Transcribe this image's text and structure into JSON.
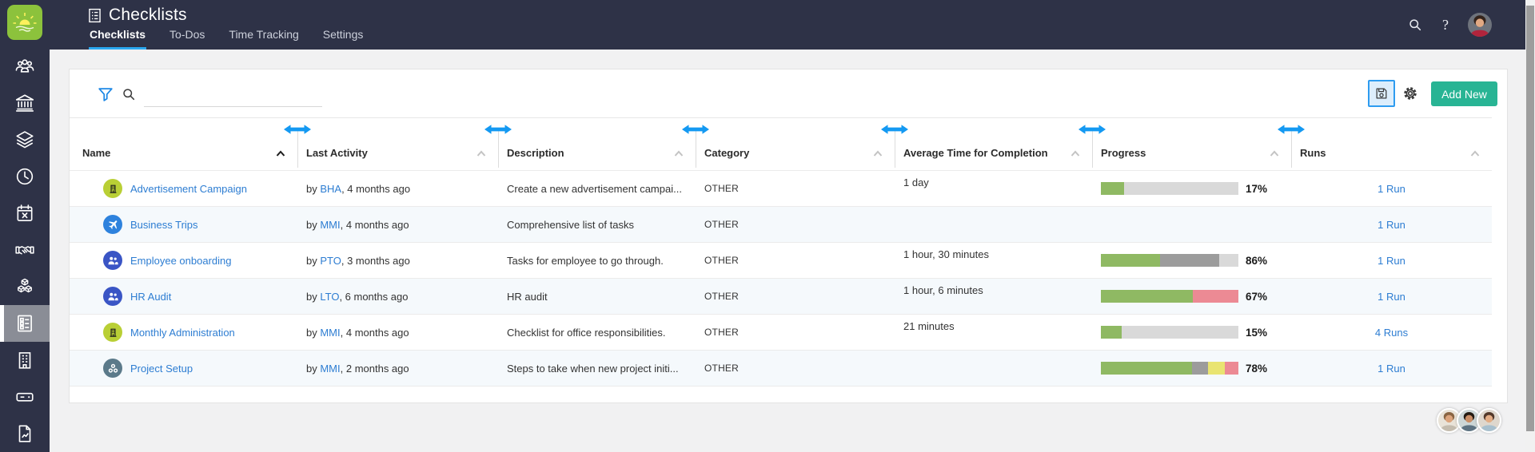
{
  "header": {
    "title": "Checklists",
    "tabs": [
      {
        "label": "Checklists",
        "active": true
      },
      {
        "label": "To-Dos",
        "active": false
      },
      {
        "label": "Time Tracking",
        "active": false
      },
      {
        "label": "Settings",
        "active": false
      }
    ]
  },
  "sidebar": {
    "items": [
      {
        "icon": "team",
        "selected": false
      },
      {
        "icon": "bank",
        "selected": false
      },
      {
        "icon": "layers",
        "selected": false
      },
      {
        "icon": "clock",
        "selected": false
      },
      {
        "icon": "calendar-x",
        "selected": false
      },
      {
        "icon": "handshake",
        "selected": false
      },
      {
        "icon": "cubes",
        "selected": false
      },
      {
        "icon": "checklist",
        "selected": true
      },
      {
        "icon": "building",
        "selected": false
      },
      {
        "icon": "server",
        "selected": false
      },
      {
        "icon": "report",
        "selected": false
      }
    ]
  },
  "toolbar": {
    "search_value": "",
    "add_new_label": "Add New"
  },
  "table": {
    "columns": [
      {
        "label": "Name",
        "sorted": true
      },
      {
        "label": "Last Activity",
        "sorted": false
      },
      {
        "label": "Description",
        "sorted": false
      },
      {
        "label": "Category",
        "sorted": false
      },
      {
        "label": "Average Time for Completion",
        "sorted": false
      },
      {
        "label": "Progress",
        "sorted": false
      },
      {
        "label": "Runs",
        "sorted": false
      }
    ],
    "rows": [
      {
        "name": "Advertisement Campaign",
        "icon": "building-sm",
        "icon_bg": "#b9cf35",
        "icon_fg": "#1d1d1d",
        "by_prefix": "by ",
        "by_user": "BHA",
        "by_suffix": ", 4 months ago",
        "description": "Create a new advertisement campai...",
        "category": "OTHER",
        "avg_time": {
          "text": "1 day",
          "bar_pct": 100
        },
        "progress": {
          "label": "17%",
          "segments": [
            {
              "color": "#8fb963",
              "pct": 17
            },
            {
              "color": "#d9d9d9",
              "pct": 83
            }
          ]
        },
        "runs": "1 Run"
      },
      {
        "name": "Business Trips",
        "icon": "plane-sm",
        "icon_bg": "#2e82dd",
        "icon_fg": "#ffffff",
        "by_prefix": "by ",
        "by_user": "MMI",
        "by_suffix": ", 4 months ago",
        "description": "Comprehensive list of tasks",
        "category": "OTHER",
        "avg_time": null,
        "progress": null,
        "runs": "1 Run"
      },
      {
        "name": "Employee onboarding",
        "icon": "people-sm",
        "icon_bg": "#3a55c5",
        "icon_fg": "#ffffff",
        "by_prefix": "by ",
        "by_user": "PTO",
        "by_suffix": ", 3 months ago",
        "description": "Tasks for employee to go through.",
        "category": "OTHER",
        "avg_time": {
          "text": "1 hour, 30 minutes",
          "bar_pct": 6.3
        },
        "progress": {
          "label": "86%",
          "segments": [
            {
              "color": "#8fb963",
              "pct": 43
            },
            {
              "color": "#9c9c9c",
              "pct": 43
            },
            {
              "color": "#d9d9d9",
              "pct": 14
            }
          ]
        },
        "runs": "1 Run"
      },
      {
        "name": "HR Audit",
        "icon": "people-sm",
        "icon_bg": "#3a55c5",
        "icon_fg": "#ffffff",
        "by_prefix": "by ",
        "by_user": "LTO",
        "by_suffix": ", 6 months ago",
        "description": "HR audit",
        "category": "OTHER",
        "avg_time": {
          "text": "1 hour, 6 minutes",
          "bar_pct": 4.6
        },
        "progress": {
          "label": "67%",
          "segments": [
            {
              "color": "#8fb963",
              "pct": 67
            },
            {
              "color": "#ec8a94",
              "pct": 33
            }
          ]
        },
        "runs": "1 Run"
      },
      {
        "name": "Monthly Administration",
        "icon": "building-sm",
        "icon_bg": "#b9cf35",
        "icon_fg": "#1d1d1d",
        "by_prefix": "by ",
        "by_user": "MMI",
        "by_suffix": ", 4 months ago",
        "description": "Checklist for office responsibilities.",
        "category": "OTHER",
        "avg_time": {
          "text": "21 minutes",
          "bar_pct": 1.5
        },
        "progress": {
          "label": "15%",
          "segments": [
            {
              "color": "#8fb963",
              "pct": 15
            },
            {
              "color": "#d9d9d9",
              "pct": 85
            }
          ]
        },
        "runs": "4 Runs"
      },
      {
        "name": "Project Setup",
        "icon": "gears-sm",
        "icon_bg": "#5b7a8a",
        "icon_fg": "#ffffff",
        "by_prefix": "by ",
        "by_user": "MMI",
        "by_suffix": ", 2 months ago",
        "description": "Steps to take when new project initi...",
        "category": "OTHER",
        "avg_time": null,
        "progress": {
          "label": "78%",
          "segments": [
            {
              "color": "#8fb963",
              "pct": 66
            },
            {
              "color": "#9c9c9c",
              "pct": 12
            },
            {
              "color": "#e9e471",
              "pct": 12
            },
            {
              "color": "#ec8a94",
              "pct": 10
            }
          ]
        },
        "runs": "1 Run"
      }
    ]
  },
  "colors": {
    "nav": "#2e3247",
    "accent_blue": "#1499f2",
    "tab_underline": "#2aa7f0",
    "link": "#2d7dd2",
    "add_new_green": "#28b494",
    "bar_orange": "#ffa200",
    "bar_green": "#8fb963",
    "bar_pink": "#ec8a94",
    "bar_yellow": "#e9e471",
    "bar_gray": "#9c9c9c",
    "bar_track": "#d9d9d9"
  }
}
